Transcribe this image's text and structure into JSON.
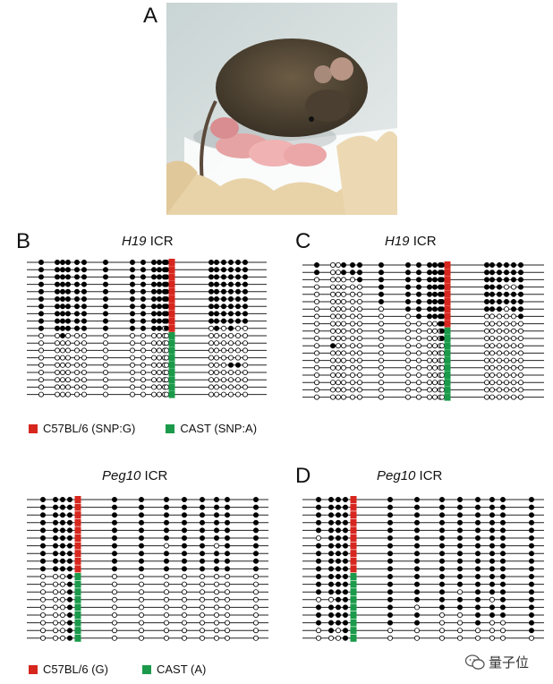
{
  "panels": {
    "A": {
      "letter": "A"
    },
    "B": {
      "letter": "B",
      "title_italic": "H19",
      "title_rest": " ICR"
    },
    "C": {
      "letter": "C",
      "title_italic": "H19",
      "title_rest": " ICR"
    },
    "D": {
      "letter": "D",
      "title_italic": "Peg10",
      "title_rest": " ICR"
    },
    "E": {
      "title_italic": "Peg10",
      "title_rest": " ICR"
    }
  },
  "legend_h19": {
    "c57": "C57BL/6 (SNP:G)",
    "cast": "CAST (SNP:A)"
  },
  "legend_peg10": {
    "c57": "C57BL/6 (G)",
    "cast": "CAST (A)"
  },
  "colors": {
    "c57": "#d7261e",
    "cast": "#1a9a4a",
    "methylated": "#000000",
    "unmethylated": "#ffffff"
  },
  "watermark": {
    "text": "量子位",
    "icon": "wechat-icon"
  },
  "figure_data": {
    "B_rows": [
      "1111111111111R111111",
      "1111111111111R111111",
      "1111111111111R111111",
      "1111111111111R111111",
      "1111111111111R111111",
      "1111111111111R111111",
      "1111111111111R111111",
      "1111111111111R111111",
      "1111111111111R111111",
      "1111111111101R010100",
      "0010000000000G000000",
      "0000000000000G000000",
      "0000000000000G000000",
      "0000000000000G000000",
      "0000000000000G000110",
      "0000000000000G000000",
      "0000000000000G000000",
      "0000000000000G000000",
      "0000000000000G000000"
    ],
    "C_rows": [
      "1001111111111R111111",
      "1001111111111R111111",
      "0000011111111R111111",
      "0000001111111R111001",
      "0000001111111R111111",
      "0000001111111R111111",
      "0000000111111R111011",
      "0000000011111R000001",
      "0000000000011R000000",
      "0000000000001G000000",
      "0000000000001G000000",
      "0100000000000G000000",
      "0000000000000G000000",
      "0000000000000G000000",
      "0000000000000G000000",
      "0000000000000G000000",
      "0000000000000G000000",
      "0000000000000G000000",
      "0000000000000G000000"
    ],
    "E_rows": [
      "1111R11111111",
      "1111R11111111",
      "1111R11111111",
      "1111R11111111",
      "1111R11111111",
      "1111R11111111",
      "1111R11011011",
      "1111R11111111",
      "1111R11111111",
      "1111R11111111",
      "0001G00000000",
      "0001G00000000",
      "0001G00000000",
      "0001G00000000",
      "0001G00000000",
      "0001G00000000",
      "0001G00000000",
      "0001G00000000",
      "0001G00000000"
    ],
    "D_rows": [
      "1111R11111111",
      "1111R11111111",
      "1111R11111111",
      "1111R11111111",
      "1111R11111111",
      "0111R11111111",
      "1111R11111111",
      "1111R11111111",
      "1111R11111111",
      "1111R11111111",
      "1111G11111111",
      "1111G11111111",
      "1111G11101111",
      "0011G11111011",
      "1111G10111111",
      "1111G11001111",
      "1111G11001001",
      "0101G00000001",
      "0001G00000000"
    ]
  }
}
